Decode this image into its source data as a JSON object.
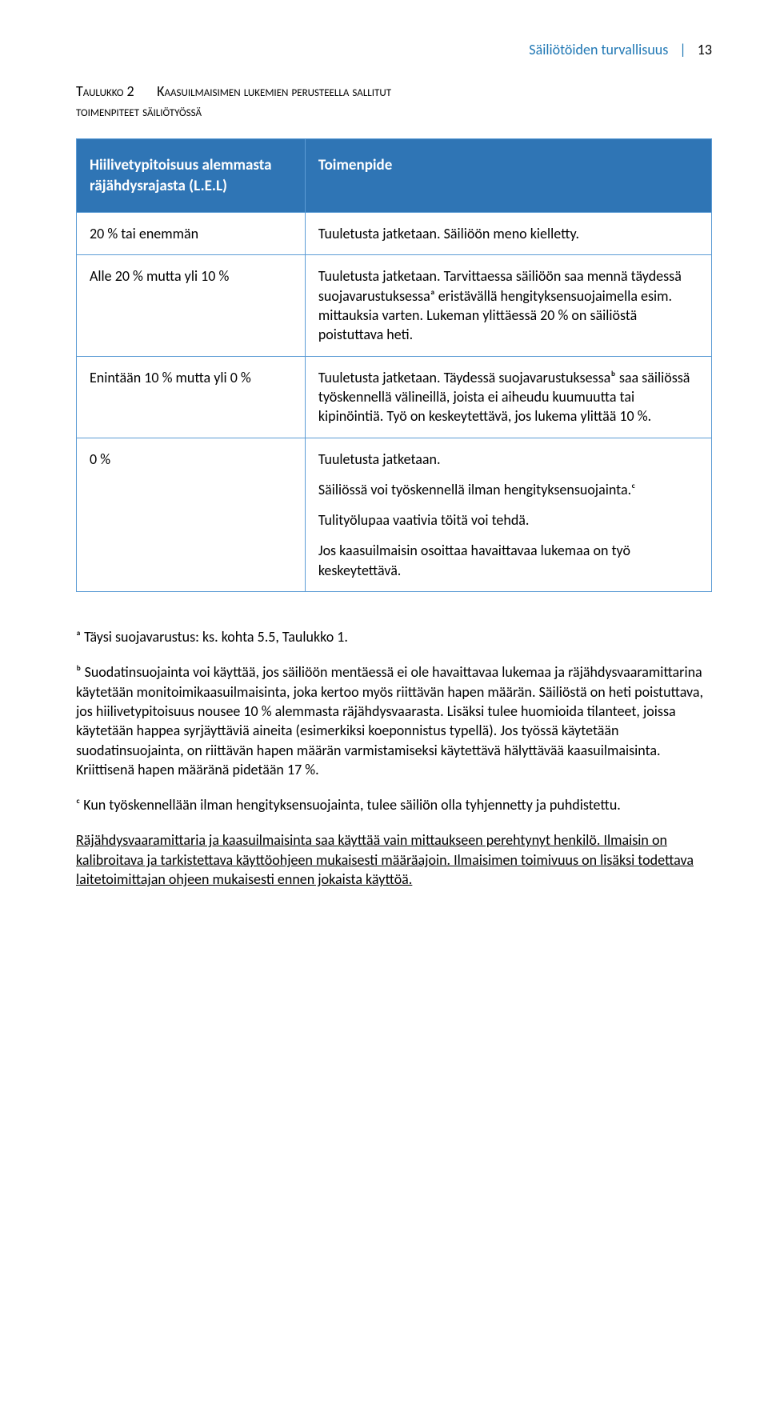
{
  "header": {
    "text": "Säiliötöiden turvallisuus",
    "separator": "|",
    "page": "13",
    "color": "#1f77b4"
  },
  "caption": {
    "prefix": "Taulukko 2",
    "main_upper": "Kaasuilmaisimen lukemien perusteella sallitut",
    "main_lower": "toimenpiteet säiliötyössä"
  },
  "table": {
    "header_bg": "#2f75b5",
    "border_color": "#5b9bd5",
    "head_left": "Hiilivetypitoisuus alemmasta räjähdysrajasta (L.E.L)",
    "head_right": "Toimenpide",
    "rows": [
      {
        "left": "20 % tai enemmän",
        "right": [
          "Tuuletusta jatketaan. Säiliöön meno kielletty."
        ]
      },
      {
        "left": "Alle 20 % mutta yli 10 %",
        "right": [
          "Tuuletusta jatketaan. Tarvittaessa säiliöön saa mennä täydessä suojavarustuksessaᵃ eristävällä hengityksensuojaimella esim. mittauksia varten. Lukeman ylittäessä 20 % on säiliöstä poistuttava heti."
        ]
      },
      {
        "left": "Enintään 10 % mutta yli 0 %",
        "right": [
          "Tuuletusta jatketaan. Täydessä suojavarustuksessaᵇ saa säiliössä työskennellä välineillä, joista ei aiheudu kuumuutta tai kipinöintiä. Työ on keskeytettävä, jos lukema ylittää 10 %."
        ]
      },
      {
        "left": "0 %",
        "right": [
          "Tuuletusta jatketaan.",
          "Säiliössä voi työskennellä ilman hengityksensuojainta.ᶜ",
          "Tulityölupaa vaativia töitä voi tehdä.",
          "Jos kaasuilmaisin osoittaa havaittavaa lukemaa on työ keskeytettävä."
        ]
      }
    ]
  },
  "footnotes": {
    "a": "ᵃ Täysi suojavarustus: ks. kohta 5.5, Taulukko 1.",
    "b": "ᵇ Suodatinsuojainta voi käyttää, jos säiliöön mentäessä ei ole havaittavaa lukemaa ja räjähdysvaaramittarina käytetään monitoimikaasuilmaisinta, joka kertoo myös riittävän hapen määrän. Säiliöstä on heti poistuttava, jos hiilivetypitoisuus nousee 10 % alemmasta räjähdysvaarasta. Lisäksi tulee huomioida tilanteet, joissa käytetään happea syrjäyttäviä aineita (esimerkiksi koeponnistus typellä). Jos työssä käytetään suodatinsuojainta, on riittävän hapen määrän varmistamiseksi käytettävä hälyttävää kaasuilmaisinta. Kriittisenä hapen määränä pidetään 17 %.",
    "c": "ᶜ Kun työskennellään ilman hengityksensuojainta, tulee säiliön olla tyhjennetty ja puhdistettu."
  },
  "closing": "Räjähdysvaaramittaria ja kaasuilmaisinta saa käyttää vain mittaukseen perehtynyt henkilö. Ilmaisin on kalibroitava ja tarkistettava käyttöohjeen mukaisesti määräajoin. Ilmaisimen toimivuus on lisäksi todettava laitetoimittajan ohjeen mukaisesti ennen jokaista käyttöä."
}
